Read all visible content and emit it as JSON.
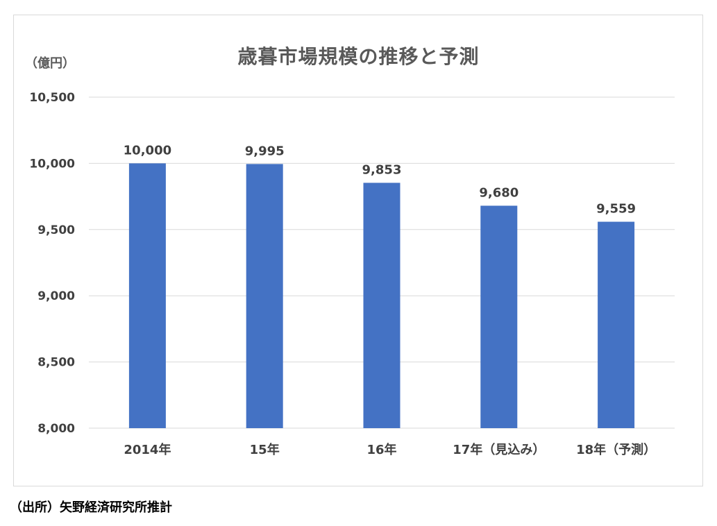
{
  "chart_data": {
    "type": "bar",
    "title": "歳暮市場規模の推移と予測",
    "ylabel": "（億円）",
    "source": "（出所）矢野経済研究所推計",
    "categories": [
      "2014年",
      "15年",
      "16年",
      "17年（見込み）",
      "18年（予測）"
    ],
    "values": [
      10000,
      9995,
      9853,
      9680,
      9559
    ],
    "value_labels": [
      "10,000",
      "9,995",
      "9,853",
      "9,680",
      "9,559"
    ],
    "ylim": [
      8000,
      10500
    ],
    "yticks": [
      8000,
      8500,
      9000,
      9500,
      10000,
      10500
    ],
    "ytick_labels": [
      "8,000",
      "8,500",
      "9,000",
      "9,500",
      "10,000",
      "10,500"
    ],
    "grid": true,
    "bar_color": "#4472c4",
    "grid_color": "#d9d9d9"
  }
}
